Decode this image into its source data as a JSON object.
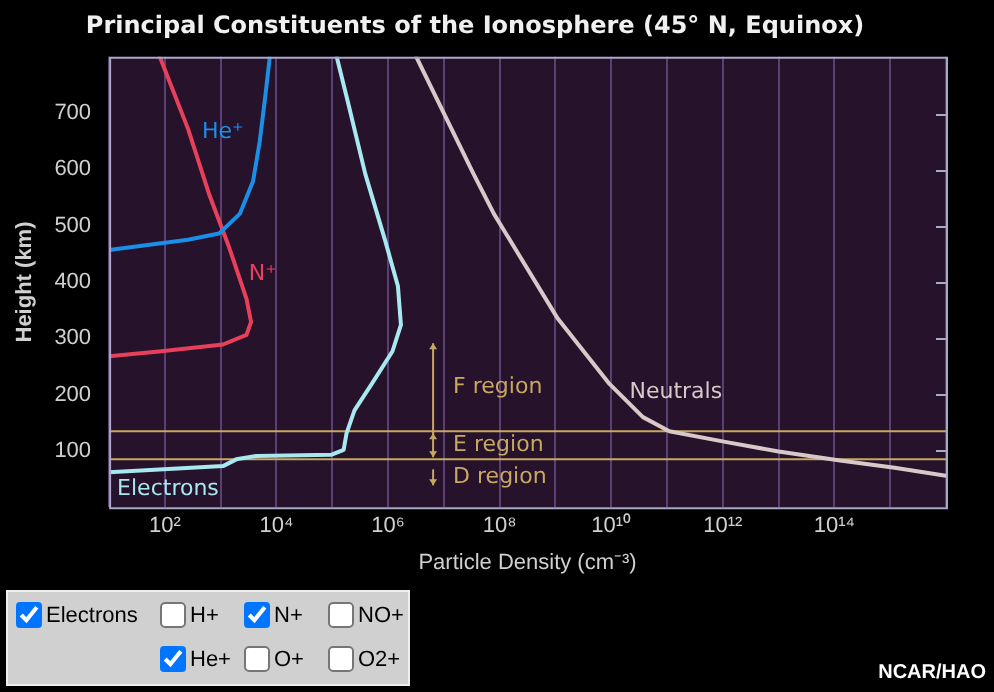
{
  "chart_data": {
    "type": "line",
    "title": "Principal Constituents of the Ionosphere (45° N, Equinox)",
    "xlabel": "Particle Density (cm⁻³)",
    "ylabel": "Height (km)",
    "log": "x",
    "grid": "x",
    "legend": false,
    "marker": "none",
    "line_style": "solid",
    "xlim": [
      10,
      1e+16
    ],
    "xticks": [
      {
        "value": 10,
        "label": null
      },
      {
        "value": 100,
        "label": "10²"
      },
      {
        "value": 1000,
        "label": null
      },
      {
        "value": 10000,
        "label": "10⁴"
      },
      {
        "value": 100000,
        "label": null
      },
      {
        "value": 1000000,
        "label": "10⁶"
      },
      {
        "value": 10000000,
        "label": null
      },
      {
        "value": 100000000,
        "label": "10⁸"
      },
      {
        "value": 1000000000,
        "label": null
      },
      {
        "value": 10000000000,
        "label": "10¹⁰"
      },
      {
        "value": 100000000000,
        "label": null
      },
      {
        "value": 1000000000000,
        "label": "10¹²"
      },
      {
        "value": 10000000000000,
        "label": null
      },
      {
        "value": 100000000000000,
        "label": "10¹⁴"
      },
      {
        "value": 1000000000000000,
        "label": null
      },
      {
        "value": 10000000000000000,
        "label": null
      }
    ],
    "ylim": [
      0,
      800
    ],
    "yticks": [
      100,
      200,
      300,
      400,
      500,
      600,
      700
    ],
    "series": [
      {
        "name": "He⁺",
        "color": "#1a8fe8",
        "x": [
          10,
          260,
          930,
          2200,
          3800,
          5000,
          6300,
          7600
        ],
        "values": [
          457,
          475,
          486,
          521,
          579,
          649,
          730,
          800
        ]
      },
      {
        "name": "N⁺",
        "color": "#e8405a",
        "x": [
          81,
          260,
          620,
          1400,
          2900,
          3500,
          2900,
          1100,
          87,
          10
        ],
        "values": [
          800,
          672,
          556,
          463,
          370,
          329,
          306,
          289,
          277,
          268
        ]
      },
      {
        "name": "Electrons",
        "color": "#a8e8f0",
        "x": [
          10,
          1100,
          1900,
          4400,
          95000,
          160000,
          180000,
          250000,
          510000,
          1200000,
          1700000,
          1500000,
          890000,
          390000,
          190000,
          120000
        ],
        "values": [
          62,
          73,
          85,
          91,
          93,
          102,
          131,
          172,
          219,
          277,
          324,
          393,
          473,
          592,
          720,
          800
        ]
      },
      {
        "name": "Neutrals",
        "color": "#d8c8c8",
        "x": [
          3200000,
          34000000,
          79000000,
          1100000000,
          9300000000,
          37000000000,
          110000000000,
          1100000000000,
          10000000000000,
          126000000000000,
          1200000000000000,
          10000000000000000
        ],
        "values": [
          800,
          592,
          521,
          335,
          219,
          160,
          135,
          116,
          99,
          83,
          70,
          56
        ]
      }
    ],
    "ref_lines": [
      {
        "axis": "y",
        "value": 135,
        "color": "#c8a860"
      },
      {
        "axis": "y",
        "value": 85,
        "color": "#c8a860"
      }
    ],
    "annotations": [
      "F region",
      "E region",
      "D region",
      "Electrons",
      "H+",
      "N+",
      "NO+",
      "He+",
      "O+",
      "O2+",
      "NCAR/HAO"
    ]
  }
}
